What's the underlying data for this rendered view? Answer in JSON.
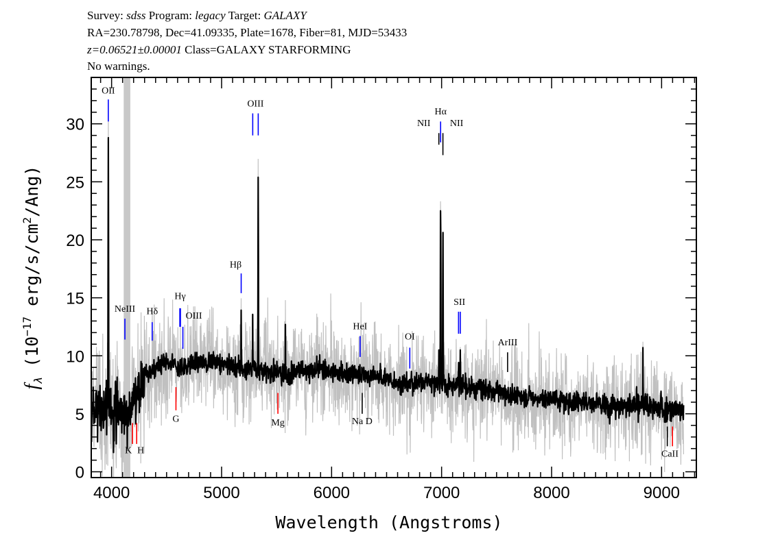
{
  "header": {
    "line1": {
      "survey_label": "Survey:",
      "survey": "sdss",
      "program_label": "Program:",
      "program": "legacy",
      "target_label": "Target:",
      "target": "GALAXY"
    },
    "line2": "RA=230.78798, Dec=41.09335, Plate=1678, Fiber=81, MJD=53433",
    "line3": {
      "redshift": "z=0.06521±0.00001",
      "class": "Class=GALAXY STARFORMING"
    },
    "line4": "No warnings."
  },
  "chart_data": {
    "type": "line",
    "xlabel": "Wavelength (Angstroms)",
    "ylabel": "f_λ (10^-17 erg/s/cm^2/Ang)",
    "ylabel_parts": {
      "f": "f",
      "sub": "λ",
      "a": "(10",
      "exp1": "−17",
      "b": " erg/s/cm",
      "exp2": "2",
      "c": "/Ang)"
    },
    "xlim": [
      3815,
      9316
    ],
    "ylim": [
      -0.5,
      34
    ],
    "xticks": [
      "4000",
      "5000",
      "6000",
      "7000",
      "8000",
      "9000"
    ],
    "yticks": [
      "0",
      "5",
      "10",
      "15",
      "20",
      "25",
      "30"
    ],
    "masked_region": [
      4110,
      4170
    ],
    "colors": {
      "flux": "#000000",
      "error": "#c0c0c0",
      "emission": "#0000ff",
      "absorption": "#ff0000",
      "other": "#000000",
      "mask": "#c8c8c8"
    },
    "continuum": {
      "x": [
        3800,
        3900,
        4000,
        4100,
        4200,
        4300,
        4400,
        4500,
        4600,
        4700,
        4800,
        4900,
        5000,
        5100,
        5200,
        5300,
        5400,
        5500,
        5600,
        5700,
        5800,
        5900,
        6000,
        6100,
        6200,
        6300,
        6400,
        6500,
        6600,
        6700,
        6800,
        6900,
        7000,
        7100,
        7200,
        7300,
        7400,
        7500,
        7600,
        7700,
        7800,
        7900,
        8000,
        8100,
        8200,
        8300,
        8400,
        8500,
        8600,
        8700,
        8800,
        8900,
        9000,
        9100,
        9200
      ],
      "y": [
        4.5,
        5.5,
        5.5,
        5.0,
        6.0,
        8.5,
        9.0,
        9.3,
        9.0,
        9.2,
        9.5,
        9.5,
        9.3,
        9.2,
        8.8,
        9.0,
        8.6,
        8.5,
        8.3,
        8.8,
        8.7,
        8.8,
        8.6,
        8.5,
        8.4,
        8.5,
        8.2,
        8.0,
        7.8,
        7.5,
        7.8,
        7.8,
        7.6,
        7.4,
        7.3,
        7.2,
        7.0,
        6.9,
        6.6,
        6.6,
        6.4,
        6.3,
        6.2,
        6.1,
        6.0,
        6.0,
        5.8,
        5.8,
        5.7,
        5.6,
        5.7,
        5.6,
        5.4,
        5.3,
        5.2
      ]
    },
    "peaks": [
      {
        "x": 3970,
        "y": 28.8
      },
      {
        "x": 5178,
        "y": 15.2
      },
      {
        "x": 5283,
        "y": 14.8
      },
      {
        "x": 5333,
        "y": 27.7
      },
      {
        "x": 5580,
        "y": 12.7
      },
      {
        "x": 5893,
        "y": 11.0
      },
      {
        "x": 6991,
        "y": 27.0
      },
      {
        "x": 7012,
        "y": 22.5
      },
      {
        "x": 6975,
        "y": 10.5
      },
      {
        "x": 7154,
        "y": 11.3
      },
      {
        "x": 7170,
        "y": 10.5
      },
      {
        "x": 8830,
        "y": 10.7
      }
    ],
    "lines": [
      {
        "label": "OII",
        "x": [
          3970
        ],
        "kind": "emission"
      },
      {
        "label": "NeIII",
        "x": [
          4121
        ],
        "kind": "emission"
      },
      {
        "label": "Hδ",
        "x": [
          4369
        ],
        "kind": "emission"
      },
      {
        "label": "Hγ",
        "x": [
          4623
        ],
        "kind": "emission"
      },
      {
        "label": "OIII",
        "x": [
          4648
        ],
        "kind": "emission"
      },
      {
        "label": "Hβ",
        "x": [
          5178
        ],
        "kind": "emission"
      },
      {
        "label": "OIII",
        "x": [
          5283,
          5333
        ],
        "kind": "emission"
      },
      {
        "label": "NII",
        "x": [
          6975
        ],
        "kind": "other"
      },
      {
        "label": "Hα",
        "x": [
          6991
        ],
        "kind": "emission"
      },
      {
        "label": "NII",
        "x": [
          7012
        ],
        "kind": "other"
      },
      {
        "label": "SII",
        "x": [
          7154,
          7170
        ],
        "kind": "emission"
      },
      {
        "label": "HeI",
        "x": [
          6259
        ],
        "kind": "emission"
      },
      {
        "label": "OI",
        "x": [
          6711
        ],
        "kind": "emission"
      },
      {
        "label": "ArIII",
        "x": [
          7600
        ],
        "kind": "other"
      },
      {
        "label": "G",
        "x": [
          4585
        ],
        "kind": "absorption"
      },
      {
        "label": "K",
        "x": [
          4190
        ],
        "kind": "absorption"
      },
      {
        "label": "H",
        "x": [
          4228
        ],
        "kind": "absorption"
      },
      {
        "label": "Mg",
        "x": [
          5512
        ],
        "kind": "absorption"
      },
      {
        "label": "Na D",
        "x": [
          6278
        ],
        "kind": "other"
      },
      {
        "label": "CaII",
        "x": [
          9052,
          9099
        ],
        "kind": "absorption"
      }
    ]
  }
}
